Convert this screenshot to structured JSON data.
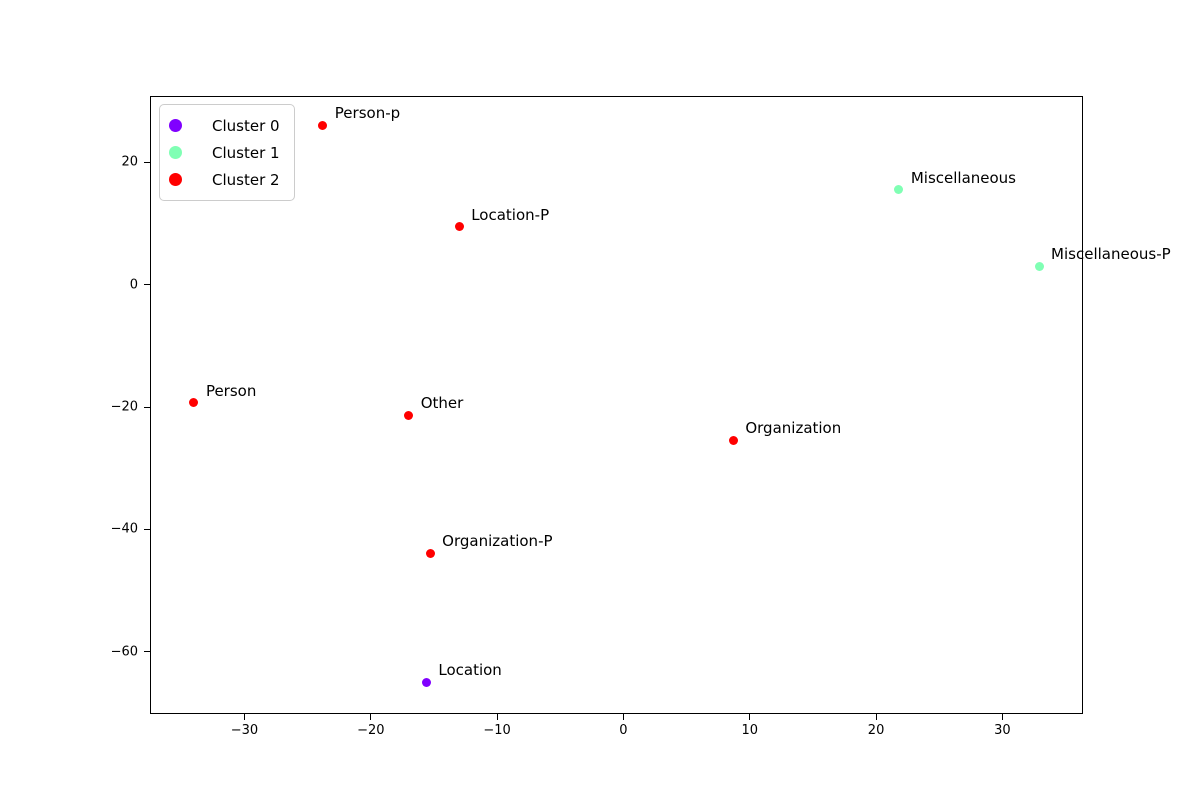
{
  "figure": {
    "background": "#ffffff",
    "axes_background": "#ffffff",
    "spine_color": "#000000"
  },
  "chart_data": {
    "type": "scatter",
    "title": "",
    "xlabel": "",
    "ylabel": "",
    "xlim": [
      -37.4,
      36.3
    ],
    "ylim": [
      -70.0,
      30.7
    ],
    "x_ticks": [
      -30,
      -20,
      -10,
      0,
      10,
      20,
      30
    ],
    "y_ticks": [
      20,
      0,
      -20,
      -40,
      -60
    ],
    "grid": false,
    "legend": {
      "position": "upper-left",
      "items": [
        {
          "label": "Cluster 0",
          "color": "#8000ff"
        },
        {
          "label": "Cluster 1",
          "color": "#80ffb4"
        },
        {
          "label": "Cluster 2",
          "color": "#ff0000"
        }
      ]
    },
    "series": [
      {
        "name": "Cluster 0",
        "color": "#8000ff",
        "points": [
          {
            "label": "Location",
            "x": -15.6,
            "y": -65.0
          }
        ]
      },
      {
        "name": "Cluster 1",
        "color": "#80ffb4",
        "points": [
          {
            "label": "Miscellaneous",
            "x": 21.8,
            "y": 15.5
          },
          {
            "label": "Miscellaneous-P",
            "x": 32.9,
            "y": 3.0
          }
        ]
      },
      {
        "name": "Cluster 2",
        "color": "#ff0000",
        "points": [
          {
            "label": "Person-p",
            "x": -23.8,
            "y": 26.1
          },
          {
            "label": "Location-P",
            "x": -13.0,
            "y": 9.5
          },
          {
            "label": "Person",
            "x": -34.0,
            "y": -19.3
          },
          {
            "label": "Other",
            "x": -17.0,
            "y": -21.3
          },
          {
            "label": "Organization",
            "x": 8.7,
            "y": -25.4
          },
          {
            "label": "Organization-P",
            "x": -15.3,
            "y": -43.9
          }
        ]
      }
    ]
  }
}
